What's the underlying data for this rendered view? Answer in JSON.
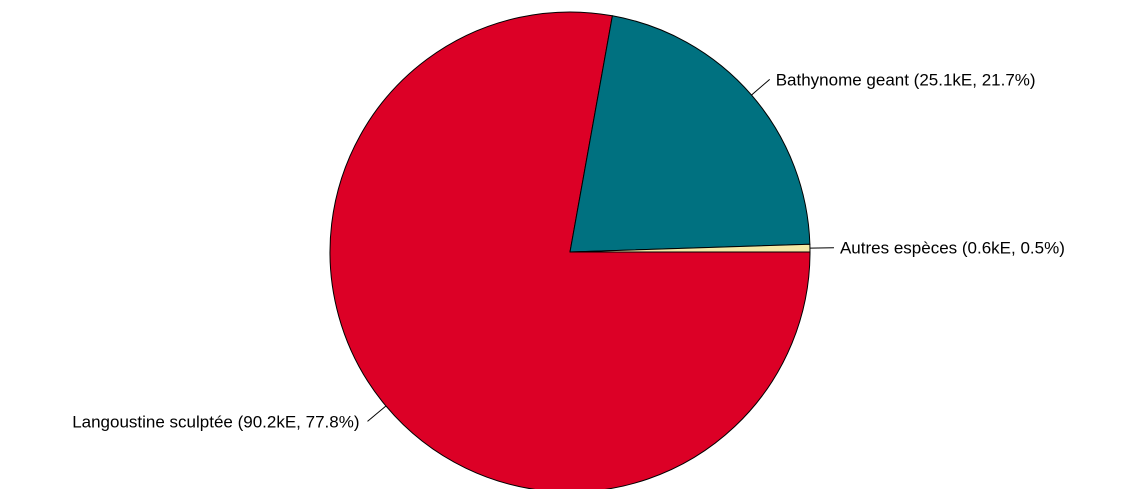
{
  "chart_data": {
    "type": "pie",
    "title": "",
    "unit": "kE",
    "slices": [
      {
        "name": "Langoustine sculptée",
        "value": 90.2,
        "percent": 77.8,
        "color": "#DC0026",
        "label": "Langoustine sculptée (90.2kE, 77.8%)"
      },
      {
        "name": "Bathynome geant",
        "value": 25.1,
        "percent": 21.7,
        "color": "#007180",
        "label": "Bathynome geant (25.1kE, 21.7%)"
      },
      {
        "name": "Autres espèces",
        "value": 0.6,
        "percent": 0.5,
        "color": "#F5E9A6",
        "label": "Autres espèces (0.6kE, 0.5%)"
      }
    ]
  }
}
